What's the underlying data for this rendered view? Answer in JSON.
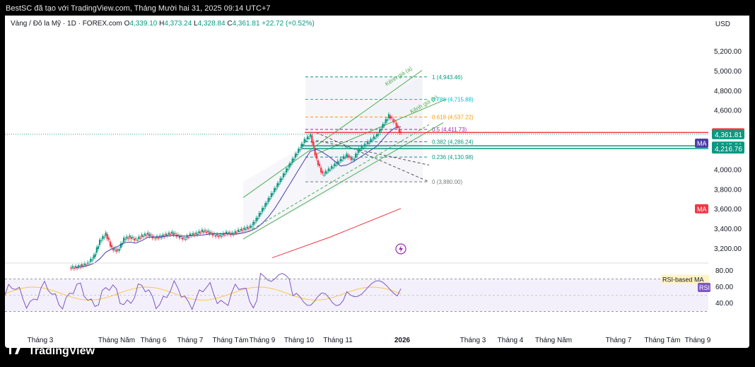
{
  "header": {
    "text": "BestSC đã tạo với TradingView.com, Tháng Mười hai 31, 2025 09:14 UTC+7"
  },
  "legend": {
    "symbol": "Vàng / Đô la Mỹ · 1D · FOREX.com",
    "o_label": "O",
    "o": "4,339.10",
    "h_label": "H",
    "h": "4,373.24",
    "l_label": "L",
    "l": "4,328.84",
    "c_label": "C",
    "c": "4,361.81",
    "change": "+22.72 (+0.52%)"
  },
  "currency": "USD",
  "price_axis": {
    "ticks": [
      {
        "value": 5200,
        "label": "5,200.00"
      },
      {
        "value": 5000,
        "label": "5,000.00"
      },
      {
        "value": 4800,
        "label": "4,800.00"
      },
      {
        "value": 4600,
        "label": "4,600.00"
      },
      {
        "value": 4000,
        "label": "4,000.00"
      },
      {
        "value": 3800,
        "label": "3,800.00"
      },
      {
        "value": 3600,
        "label": "3,600.00"
      },
      {
        "value": 3400,
        "label": "3,400.00"
      },
      {
        "value": 3200,
        "label": "3,200.00"
      }
    ],
    "badges": [
      {
        "value": 4380.0,
        "label": "4,380.00",
        "color": "#f23645"
      },
      {
        "value": 4361.81,
        "label": "4,361.81",
        "color": "#089981"
      },
      {
        "value": 4245.21,
        "label": "4,245.21",
        "color": "#089981"
      },
      {
        "value": 4216.76,
        "label": "4,216.76",
        "color": "#089981"
      }
    ],
    "ma_tags": [
      {
        "label": "MA",
        "value": 4275,
        "color": "#4b3fa8"
      },
      {
        "label": "MA",
        "value": 3610,
        "color": "#f23645"
      }
    ]
  },
  "fib_levels": [
    {
      "ratio": "1",
      "price": 4943.46,
      "label": "1 (4,943.46)",
      "color": "#089981"
    },
    {
      "ratio": "0.786",
      "price": 4715.88,
      "label": "0.786 (4,715.88)",
      "color": "#00bcd4"
    },
    {
      "ratio": "0.618",
      "price": 4537.22,
      "label": "0.618 (4,537.22)",
      "color": "#ff9800"
    },
    {
      "ratio": "0.5",
      "price": 4411.73,
      "label": "0.5 (4,411.73)",
      "color": "#9c27b0"
    },
    {
      "ratio": "0.382",
      "price": 4286.24,
      "label": "0.382 (4,286.24)",
      "color": "#089981"
    },
    {
      "ratio": "0.236",
      "price": 4130.98,
      "label": "0.236 (4,130.98)",
      "color": "#089981"
    },
    {
      "ratio": "0",
      "price": 3880.0,
      "label": "0 (3,880.00)",
      "color": "#787b86"
    }
  ],
  "channels": [
    {
      "label": "Kênh giá (a)"
    },
    {
      "label": "Kênh giá (b)"
    }
  ],
  "rsi": {
    "ticks": [
      {
        "value": 80,
        "label": "80.00"
      },
      {
        "value": 60,
        "label": "60.00"
      },
      {
        "value": 40,
        "label": "40.00"
      }
    ],
    "ma_label": "RSI-based MA",
    "rsi_label": "RSI",
    "upper": 70,
    "lower": 30
  },
  "time_axis": [
    {
      "label": "Tháng 3",
      "bold": false
    },
    {
      "label": "Tháng Năm",
      "bold": false
    },
    {
      "label": "Tháng 6",
      "bold": false
    },
    {
      "label": "Tháng 7",
      "bold": false
    },
    {
      "label": "Tháng Tám",
      "bold": false
    },
    {
      "label": "Tháng 9",
      "bold": false
    },
    {
      "label": "Tháng 10",
      "bold": false
    },
    {
      "label": "Tháng 11",
      "bold": false
    },
    {
      "label": "2026",
      "bold": true
    },
    {
      "label": "Tháng 3",
      "bold": false
    },
    {
      "label": "Tháng 4",
      "bold": false
    },
    {
      "label": "Tháng Năm",
      "bold": false
    },
    {
      "label": "Tháng 7",
      "bold": false
    },
    {
      "label": "Tháng Tám",
      "bold": false
    },
    {
      "label": "Tháng 9",
      "bold": false
    }
  ],
  "brand": {
    "name": "TradingView"
  },
  "colors": {
    "up": "#089981",
    "down": "#f23645",
    "ma_fast": "#4b3fa8",
    "ma_slow": "#f23645",
    "rsi": "#7e57c2",
    "rsi_ma": "#f7c948"
  },
  "chart_data": {
    "type": "candlestick",
    "title": "Vàng / Đô la Mỹ · 1D · FOREX.com",
    "ylim": [
      3000,
      5350
    ],
    "close_series_approx": [
      3010,
      3030,
      3050,
      3120,
      3280,
      3350,
      3200,
      3180,
      3300,
      3320,
      3290,
      3330,
      3350,
      3310,
      3320,
      3340,
      3360,
      3330,
      3300,
      3340,
      3350,
      3380,
      3370,
      3340,
      3330,
      3360,
      3350,
      3380,
      3400,
      3420,
      3500,
      3600,
      3700,
      3800,
      3900,
      4000,
      4100,
      4200,
      4300,
      4350,
      4100,
      3950,
      4000,
      4050,
      4100,
      4150,
      4100,
      4200,
      4250,
      4300,
      4350,
      4450,
      4550,
      4480,
      4361.81
    ],
    "support_lines": [
      4245.21,
      4216.76
    ],
    "resistance_line": 4380.0
  }
}
